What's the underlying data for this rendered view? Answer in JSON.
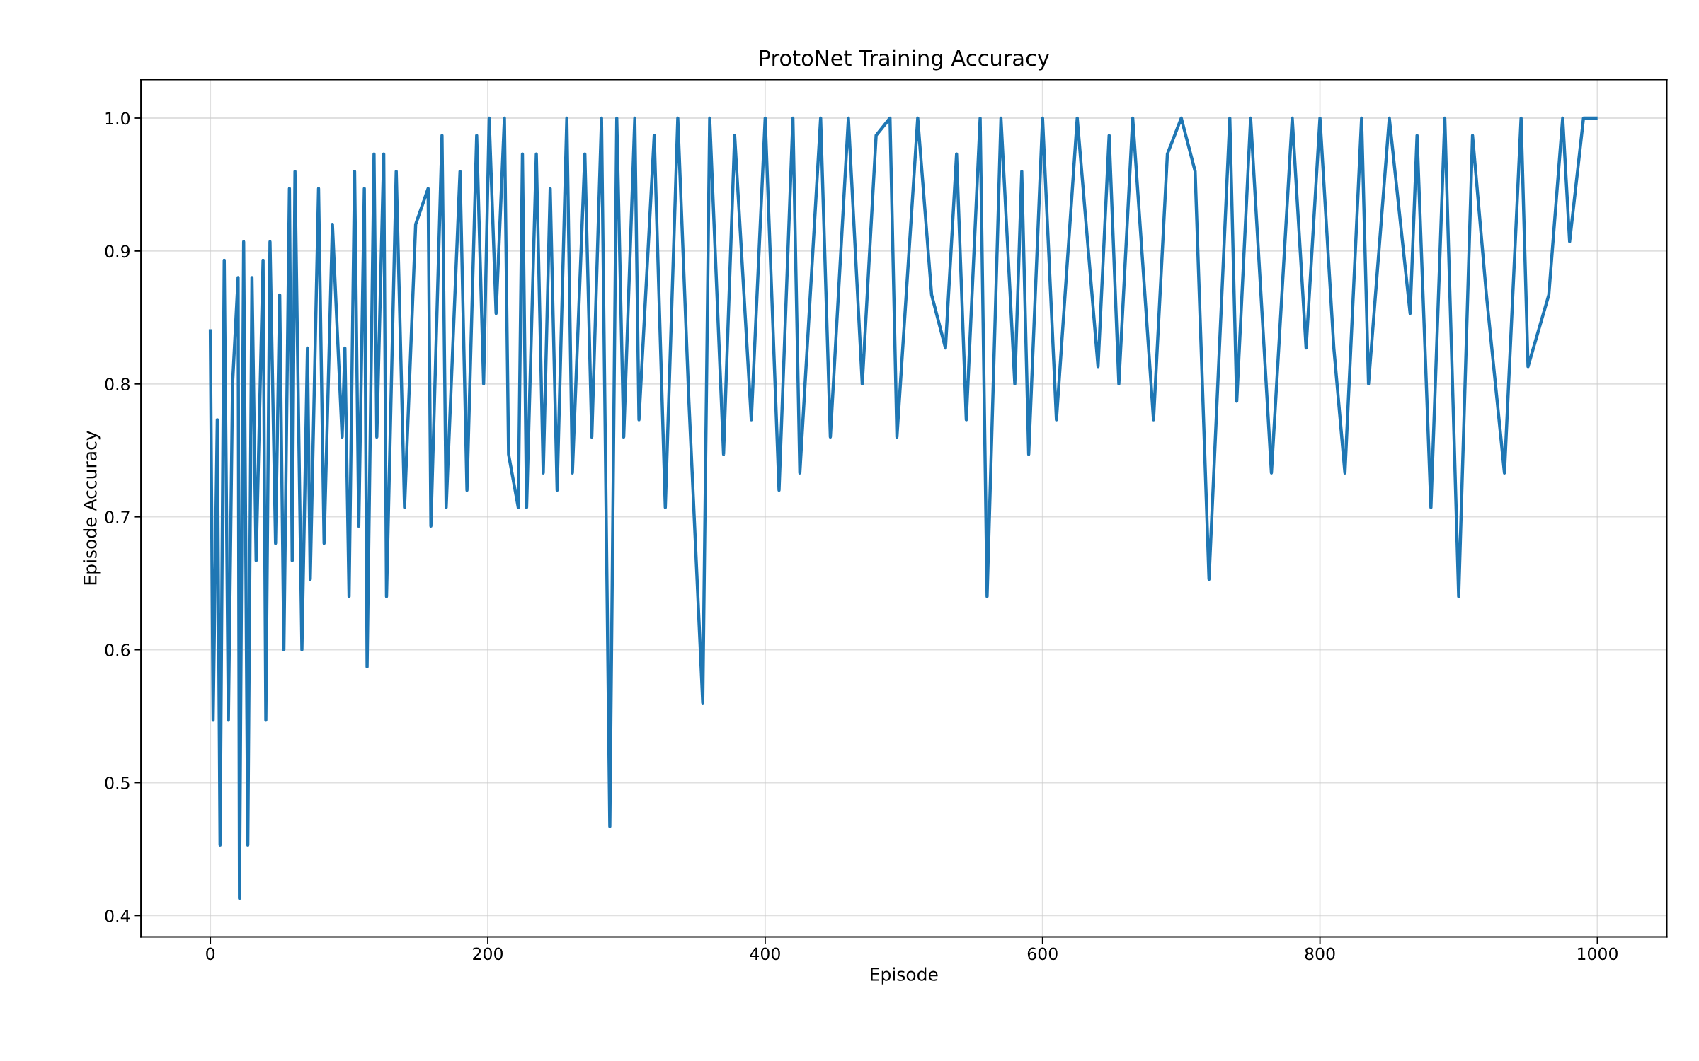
{
  "chart_data": {
    "type": "line",
    "title": "ProtoNet Training Accuracy",
    "xlabel": "Episode",
    "ylabel": "Episode Accuracy",
    "xlim": [
      -50,
      1050
    ],
    "ylim": [
      0.384,
      1.029
    ],
    "xticks": [
      0,
      200,
      400,
      600,
      800,
      1000
    ],
    "yticks": [
      0.4,
      0.5,
      0.6,
      0.7,
      0.8,
      0.9,
      {
        "value": 1.0,
        "label": "1.0"
      }
    ],
    "grid": true,
    "marker": "none",
    "line_style": "solid",
    "series": [
      {
        "color": "#1f77b4",
        "x": [
          0,
          2,
          5,
          7,
          10,
          13,
          16,
          20,
          21,
          24,
          27,
          30,
          33,
          38,
          40,
          43,
          47,
          50,
          53,
          57,
          59,
          61,
          66,
          70,
          72,
          78,
          82,
          88,
          95,
          97,
          100,
          104,
          107,
          111,
          113,
          118,
          120,
          125,
          127,
          134,
          140,
          148,
          157,
          159,
          167,
          170,
          180,
          185,
          192,
          197,
          201,
          206,
          212,
          215,
          222,
          225,
          228,
          235,
          240,
          245,
          250,
          257,
          261,
          270,
          275,
          282,
          288,
          293,
          298,
          306,
          309,
          320,
          328,
          337,
          345,
          355,
          360,
          370,
          378,
          390,
          400,
          410,
          420,
          425,
          440,
          447,
          460,
          470,
          480,
          490,
          495,
          510,
          520,
          530,
          538,
          545,
          555,
          560,
          570,
          580,
          585,
          590,
          600,
          610,
          625,
          640,
          648,
          655,
          665,
          680,
          690,
          700,
          710,
          720,
          735,
          740,
          750,
          765,
          780,
          790,
          800,
          810,
          818,
          830,
          835,
          850,
          865,
          870,
          880,
          890,
          900,
          910,
          920,
          933,
          945,
          950,
          965,
          975,
          980,
          990,
          999
        ],
        "values": [
          0.84,
          0.547,
          0.773,
          0.453,
          0.893,
          0.547,
          0.8,
          0.88,
          0.413,
          0.907,
          0.453,
          0.88,
          0.667,
          0.893,
          0.547,
          0.907,
          0.68,
          0.867,
          0.6,
          0.947,
          0.667,
          0.96,
          0.6,
          0.827,
          0.653,
          0.947,
          0.68,
          0.92,
          0.76,
          0.827,
          0.64,
          0.96,
          0.693,
          0.947,
          0.587,
          0.973,
          0.76,
          0.973,
          0.64,
          0.96,
          0.707,
          0.92,
          0.947,
          0.693,
          0.987,
          0.707,
          0.96,
          0.72,
          0.987,
          0.8,
          1.0,
          0.853,
          1.0,
          0.747,
          0.707,
          0.973,
          0.707,
          0.973,
          0.733,
          0.947,
          0.72,
          1.0,
          0.733,
          0.973,
          0.76,
          1.0,
          0.467,
          1.0,
          0.76,
          1.0,
          0.773,
          0.987,
          0.707,
          1.0,
          0.787,
          0.56,
          1.0,
          0.747,
          0.987,
          0.773,
          1.0,
          0.72,
          1.0,
          0.733,
          1.0,
          0.76,
          1.0,
          0.8,
          0.987,
          1.0,
          0.76,
          1.0,
          0.867,
          0.827,
          0.973,
          0.773,
          1.0,
          0.64,
          1.0,
          0.8,
          0.96,
          0.747,
          1.0,
          0.773,
          1.0,
          0.813,
          0.987,
          0.8,
          1.0,
          0.773,
          0.973,
          1.0,
          0.96,
          0.653,
          1.0,
          0.787,
          1.0,
          0.733,
          1.0,
          0.827,
          1.0,
          0.827,
          0.733,
          1.0,
          0.8,
          1.0,
          0.853,
          0.987,
          0.707,
          1.0,
          0.64,
          0.987,
          0.867,
          0.733,
          1.0,
          0.813,
          0.867,
          1.0,
          0.907,
          1.0,
          1.0
        ]
      }
    ]
  }
}
